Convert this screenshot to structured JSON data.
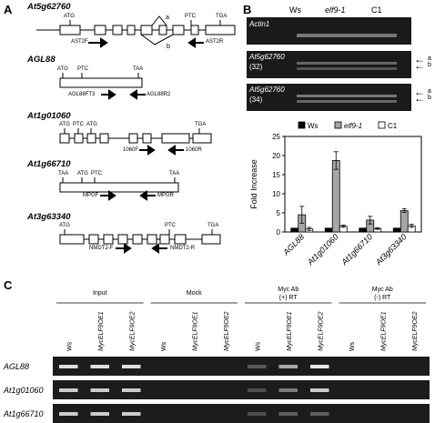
{
  "panels": {
    "a": "A",
    "b": "B",
    "c": "C"
  },
  "panel_a": {
    "genes": [
      {
        "name": "At5g62760",
        "labels": [
          "ATG",
          "PTC",
          "TGA",
          "a",
          "b"
        ],
        "primers": [
          "AST2F",
          "AST2R"
        ]
      },
      {
        "name": "AGL88",
        "labels": [
          "ATG",
          "PTC",
          "TAA"
        ],
        "primers": [
          "AGL88FT3",
          "AGL88R2"
        ]
      },
      {
        "name": "At1g01060",
        "labels": [
          "ATG",
          "PTC",
          "ATG",
          "TGA"
        ],
        "primers": [
          "1060F",
          "1060R"
        ]
      },
      {
        "name": "At1g66710",
        "labels": [
          "TAA",
          "ATG",
          "PTC",
          "TAA"
        ],
        "primers": [
          "MPGF",
          "MPGR"
        ]
      },
      {
        "name": "At3g63340",
        "labels": [
          "ATG",
          "PTC",
          "TGA"
        ],
        "primers": [
          "NMDT2-F",
          "NMDT2-R"
        ]
      }
    ]
  },
  "panel_b": {
    "columns": [
      "Ws",
      "elf9-1",
      "C1"
    ],
    "gels": [
      {
        "label": "Actin1",
        "sub": ""
      },
      {
        "label": "At5g62760",
        "sub": "(32)",
        "bands": [
          "a",
          "b"
        ]
      },
      {
        "label": "At5g62760",
        "sub": "(34)",
        "bands": [
          "a",
          "b"
        ]
      }
    ]
  },
  "chart_data": {
    "type": "bar",
    "categories": [
      "AGL88",
      "At1g01060",
      "At1g66710",
      "At3g63340"
    ],
    "series": [
      {
        "name": "Ws",
        "values": [
          1,
          1,
          1,
          1
        ],
        "err": [
          0,
          0,
          0,
          0
        ],
        "color": "#000000"
      },
      {
        "name": "elf9-1",
        "values": [
          4.5,
          18.7,
          3.1,
          5.6
        ],
        "err": [
          2.2,
          2.3,
          1.0,
          0.5
        ],
        "color": "#a6a6a6"
      },
      {
        "name": "C1",
        "values": [
          0.8,
          1.5,
          0.9,
          1.6
        ],
        "err": [
          0.4,
          0.3,
          0.2,
          0.4
        ],
        "color": "#ffffff"
      }
    ],
    "ylabel": "Fold Increase",
    "ylim": [
      0,
      25
    ],
    "yticks": [
      0,
      5,
      10,
      15,
      20,
      25
    ],
    "legend": "top"
  },
  "panel_c": {
    "groups": [
      "Input",
      "Mock",
      "Myc Ab\n(+) RT",
      "Myc Ab\n(-) RT"
    ],
    "group_lines": [
      [
        "Input",
        ""
      ],
      [
        "Mock",
        ""
      ],
      [
        "Myc Ab",
        "(+) RT"
      ],
      [
        "Myc Ab",
        "(-) RT"
      ]
    ],
    "lanes": [
      "Ws",
      "MycELF9OE1",
      "MycELF9OE2",
      "Ws",
      "MycELF9OE1",
      "MycELF9OE2",
      "Ws",
      "MycELF9OE1",
      "MycELF9OE2",
      "Ws",
      "MycELF9OE1",
      "MycELF9OE2"
    ],
    "rows": [
      "AGL88",
      "At1g01060",
      "At1g66710"
    ]
  }
}
